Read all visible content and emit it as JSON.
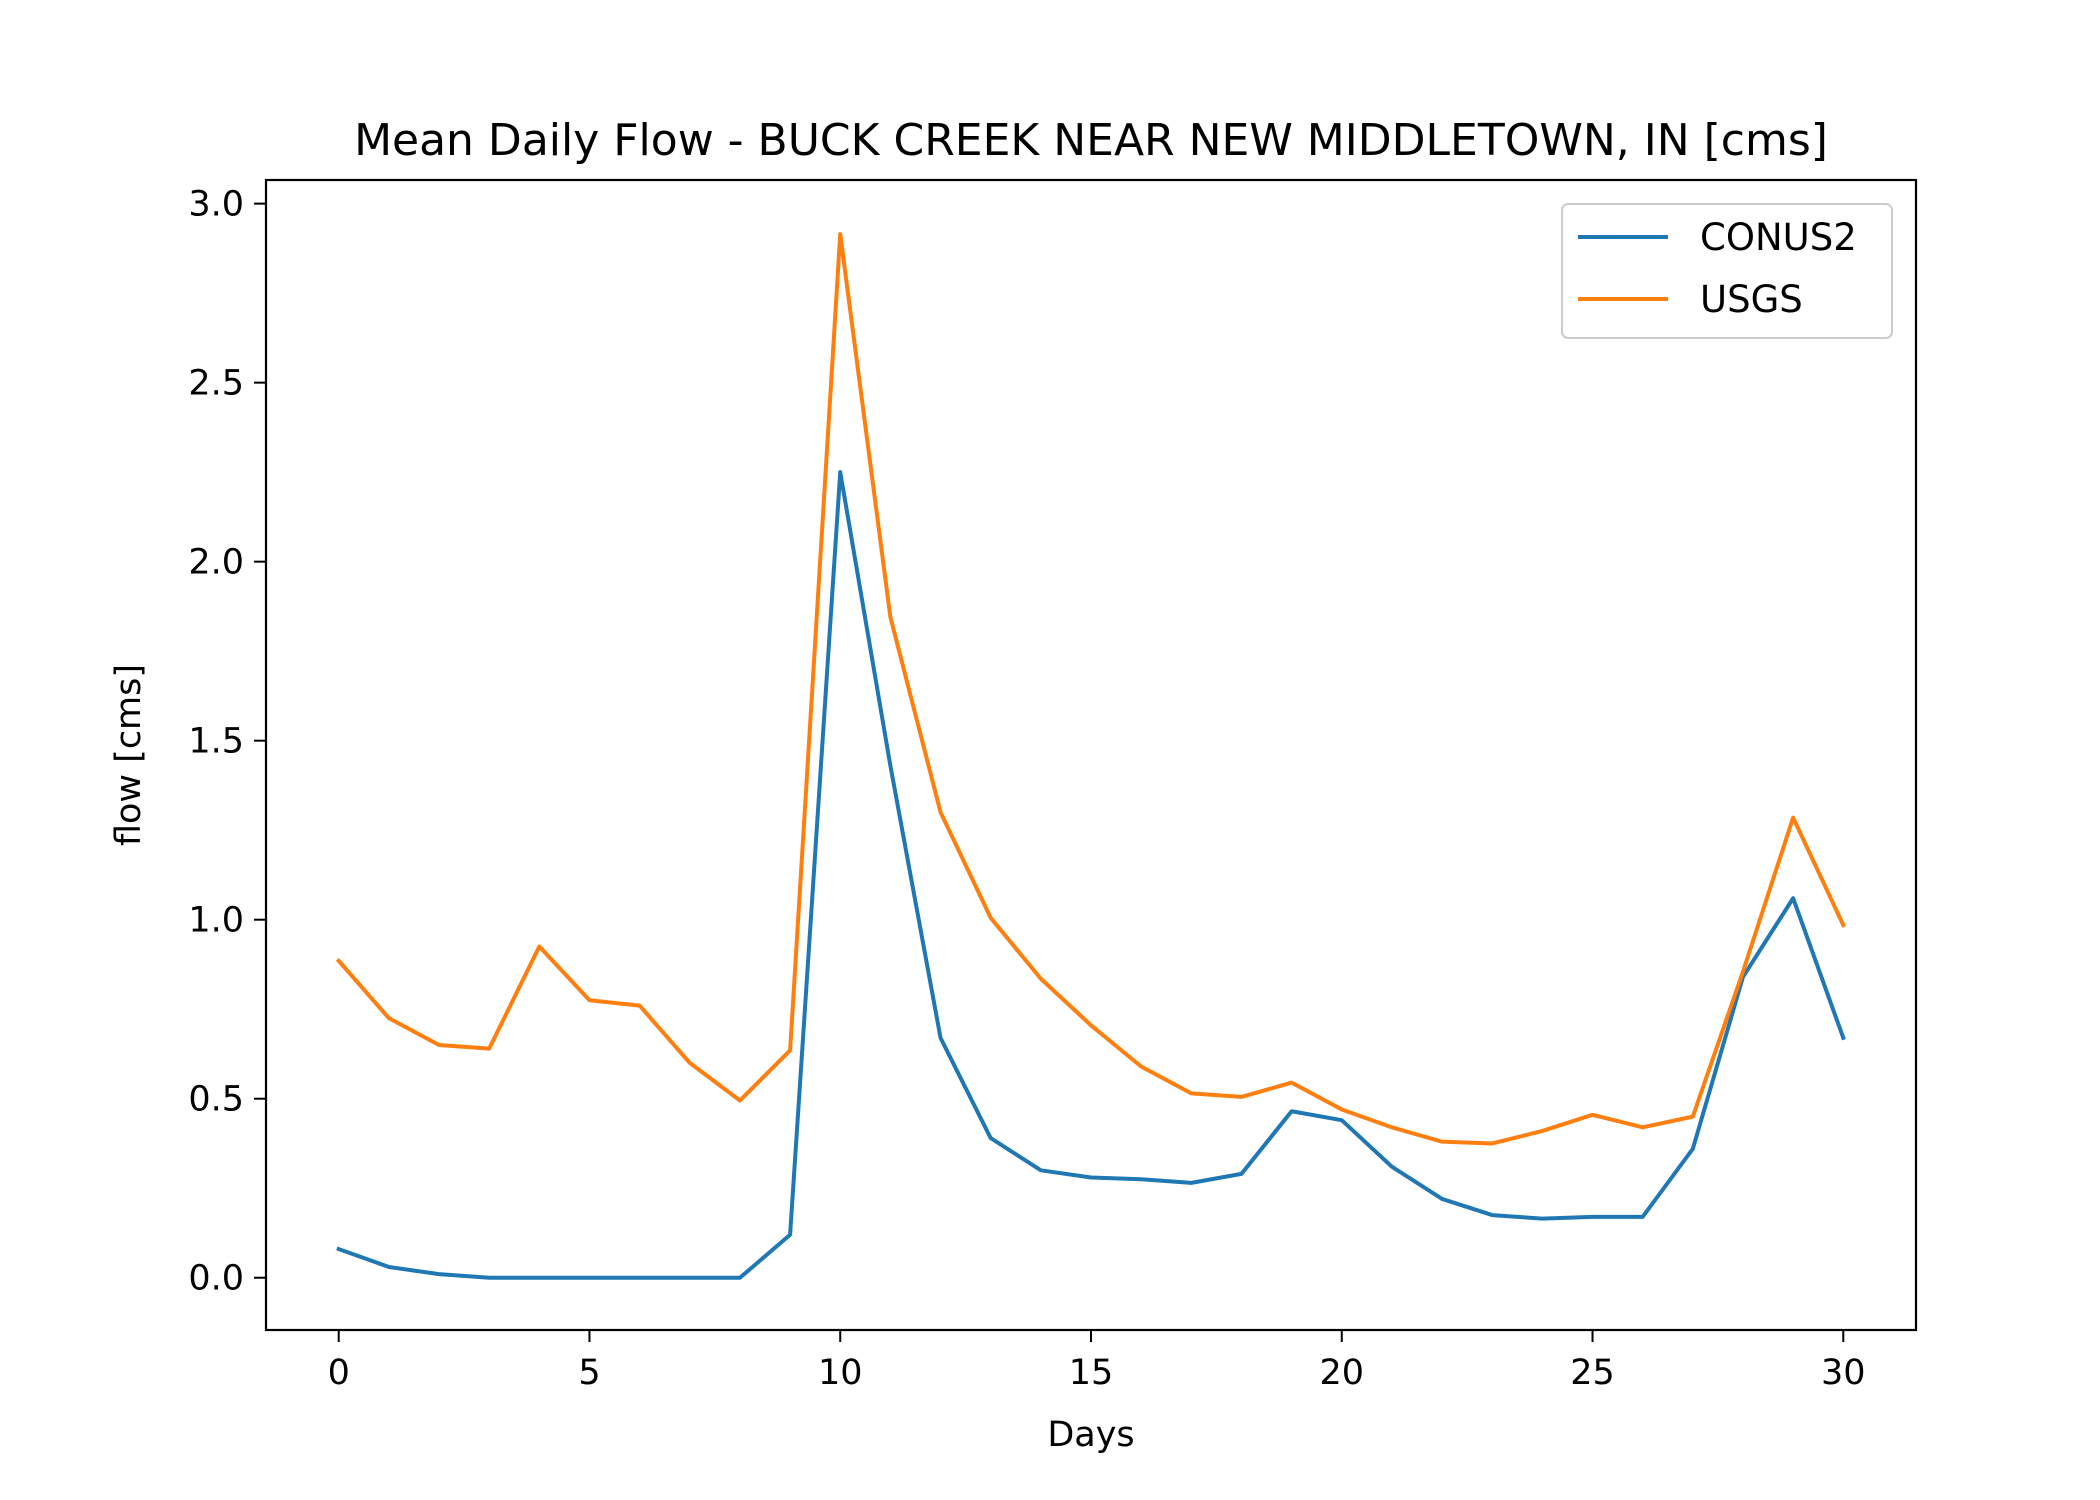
{
  "chart_data": {
    "type": "line",
    "title": "Mean Daily Flow - BUCK CREEK NEAR NEW MIDDLETOWN, IN [cms]",
    "xlabel": "Days",
    "ylabel": "flow [cms]",
    "xlim": [
      -1.45,
      31.45
    ],
    "ylim": [
      -0.146,
      3.066
    ],
    "xticks": [
      0,
      5,
      10,
      15,
      20,
      25,
      30
    ],
    "yticks": [
      0.0,
      0.5,
      1.0,
      1.5,
      2.0,
      2.5,
      3.0
    ],
    "xtick_labels": [
      "0",
      "5",
      "10",
      "15",
      "20",
      "25",
      "30"
    ],
    "ytick_labels": [
      "0.0",
      "0.5",
      "1.0",
      "1.5",
      "2.0",
      "2.5",
      "3.0"
    ],
    "grid": false,
    "legend_position": "upper right",
    "x": [
      0,
      1,
      2,
      3,
      4,
      5,
      6,
      7,
      8,
      9,
      10,
      11,
      12,
      13,
      14,
      15,
      16,
      17,
      18,
      19,
      20,
      21,
      22,
      23,
      24,
      25,
      26,
      27,
      28,
      29,
      30
    ],
    "series": [
      {
        "name": "CONUS2",
        "color": "#1f77b4",
        "values": [
          0.08,
          0.03,
          0.01,
          0.0,
          0.0,
          0.0,
          0.0,
          0.0,
          0.0,
          0.12,
          2.25,
          1.43,
          0.67,
          0.39,
          0.3,
          0.28,
          0.275,
          0.265,
          0.29,
          0.465,
          0.44,
          0.31,
          0.22,
          0.175,
          0.165,
          0.17,
          0.17,
          0.36,
          0.84,
          1.06,
          0.67
        ]
      },
      {
        "name": "USGS",
        "color": "#ff7f0e",
        "values": [
          0.885,
          0.725,
          0.65,
          0.64,
          0.925,
          0.775,
          0.76,
          0.6,
          0.495,
          0.635,
          2.915,
          1.845,
          1.3,
          1.005,
          0.835,
          0.705,
          0.59,
          0.515,
          0.505,
          0.545,
          0.47,
          0.42,
          0.38,
          0.375,
          0.41,
          0.455,
          0.42,
          0.45,
          0.855,
          1.285,
          0.985
        ]
      }
    ]
  }
}
